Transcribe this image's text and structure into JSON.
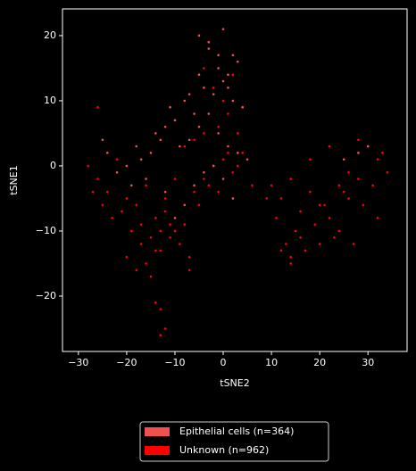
{
  "chart_data": {
    "type": "scatter",
    "x_label": "tSNE2",
    "y_label": "tSNE1",
    "xlim": [
      -33.3,
      38.1
    ],
    "ylim": [
      -28.5,
      24.1
    ],
    "xticks": [
      {
        "value": -30,
        "label": "−30"
      },
      {
        "value": -20,
        "label": "−20"
      },
      {
        "value": -10,
        "label": "−10"
      },
      0,
      10,
      20,
      30
    ],
    "yticks": [
      {
        "value": -20,
        "label": "−20"
      },
      {
        "value": -10,
        "label": "−10"
      },
      0,
      10,
      20
    ],
    "series": [
      {
        "name": "Unknown (n=962)",
        "color": "#ff0000",
        "x": [
          -28,
          -26,
          -24,
          -22,
          -20,
          -18,
          -16,
          -14,
          -12,
          -10,
          -8,
          -6,
          -4,
          -2,
          0,
          2,
          4,
          6,
          -27,
          -25,
          -23,
          -21,
          -19,
          -17,
          -15,
          -13,
          -11,
          -9,
          -7,
          -5,
          -3,
          -1,
          1,
          3,
          -20,
          -18,
          -16,
          -14,
          -12,
          -10,
          -8,
          -6,
          -4,
          -17,
          -15,
          -13,
          -11,
          -14,
          -13,
          -12,
          10,
          12,
          14,
          16,
          18,
          20,
          22,
          24,
          26,
          28,
          30,
          32,
          34,
          11,
          13,
          15,
          17,
          19,
          21,
          23,
          25,
          27,
          29,
          31,
          33,
          9,
          14,
          18,
          22,
          26,
          12,
          14,
          16,
          20,
          24,
          28,
          32,
          -1,
          1,
          3,
          -2,
          0,
          2,
          4,
          -4,
          -26,
          -14,
          -13,
          -13,
          -7
        ],
        "values": [
          0,
          -2,
          -4,
          1,
          -5,
          -6,
          -3,
          -8,
          -7,
          -10,
          -9,
          -4,
          -2,
          0,
          1,
          -1,
          2,
          -3,
          -4,
          -6,
          -8,
          -7,
          -10,
          -12,
          -11,
          -13,
          -9,
          -12,
          -14,
          -6,
          -3,
          -4,
          2,
          0,
          -14,
          -16,
          -15,
          -13,
          -5,
          -2,
          3,
          4,
          5,
          -9,
          -17,
          -10,
          -11,
          -21,
          -26,
          -25,
          -3,
          -5,
          -2,
          -7,
          -4,
          -6,
          -8,
          -3,
          -5,
          -2,
          3,
          1,
          -1,
          -8,
          -12,
          -10,
          -13,
          -9,
          -6,
          -11,
          -4,
          -12,
          -6,
          -3,
          2,
          -5,
          -14,
          1,
          3,
          -1,
          -13,
          -15,
          -11,
          -12,
          -10,
          4,
          -8,
          6,
          8,
          5,
          12,
          10,
          14,
          9,
          15,
          9,
          -21,
          -26,
          -22,
          -16
        ]
      },
      {
        "name": "Epithelial cells (n=364)",
        "color": "#f05050",
        "x": [
          -5,
          -3,
          0,
          2,
          -1,
          1,
          3,
          -4,
          -2,
          0,
          2,
          4,
          -6,
          -8,
          -10,
          -12,
          -14,
          -9,
          -7,
          -5,
          -3,
          -1,
          1,
          3,
          5,
          -11,
          -13,
          -15,
          -17,
          -16,
          -18,
          -20,
          -6,
          -4,
          -2,
          0,
          2,
          -8,
          -10,
          -12,
          -3,
          -1,
          1,
          -5,
          -7,
          -22,
          -24,
          -19,
          28,
          30,
          25,
          -25
        ],
        "values": [
          20,
          19,
          21,
          17,
          15,
          14,
          16,
          12,
          11,
          13,
          10,
          9,
          8,
          10,
          7,
          6,
          5,
          3,
          4,
          6,
          8,
          5,
          3,
          2,
          1,
          9,
          4,
          2,
          1,
          -2,
          3,
          0,
          -3,
          -1,
          0,
          -2,
          -5,
          -6,
          -8,
          -4,
          18,
          17,
          12,
          14,
          11,
          -1,
          2,
          -3,
          2,
          3,
          1,
          4
        ]
      }
    ],
    "legend_position": "below"
  }
}
